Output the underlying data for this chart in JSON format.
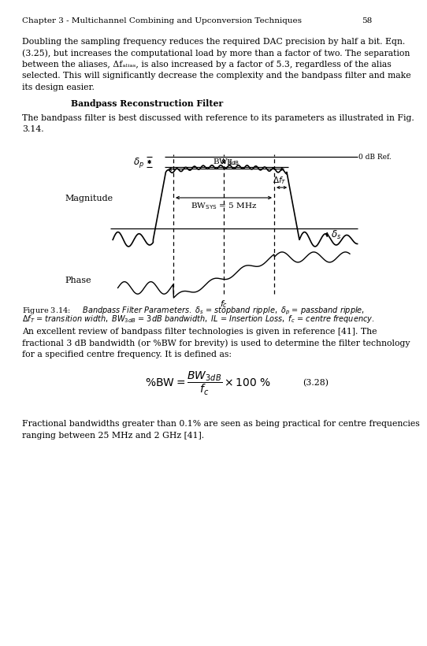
{
  "page_header": "Chapter 3 - Multichannel Combining and Upconversion Techniques",
  "page_number": "58",
  "bg_color": "#ffffff",
  "text_color": "#000000",
  "body1_lines": [
    "Doubling the sampling frequency reduces the required DAC precision by half a bit. Eqn.",
    "(3.25), but increases the computational load by more than a factor of two. The separation",
    "between the aliases, Δfₐₗᵢₐₛ, is also increased by a factor of 5.3, regardless of the alias",
    "selected. This will significantly decrease the complexity and the bandpass filter and make",
    "its design easier."
  ],
  "section_heading": "Bandpass Reconstruction Filter",
  "body2_lines": [
    "The bandpass filter is best discussed with reference to its parameters as illustrated in Fig.",
    "3.14."
  ],
  "caption_line1": "Figure 3.14:     Bandpass Filter Parameters. δₛ = stopband ripple, δₚ = passband ripple,",
  "caption_line2": "Δfᵀ = transition width, BW₃dB = 3dB bandwidth, IL = Insertion Loss, fₑ = centre frequency.",
  "body3_lines": [
    "An excellent review of bandpass filter technologies is given in reference [41]. The",
    "fractional 3 dB bandwidth (or %BW for brevity) is used to determine the filter technology",
    "for a specified centre frequency. It is defined as:"
  ],
  "equation_label": "(3.28)",
  "body4_lines": [
    "Fractional bandwidths greater than 0.1% are seen as being practical for centre frequencies",
    "ranging between 25 MHz and 2 GHz [41]."
  ]
}
